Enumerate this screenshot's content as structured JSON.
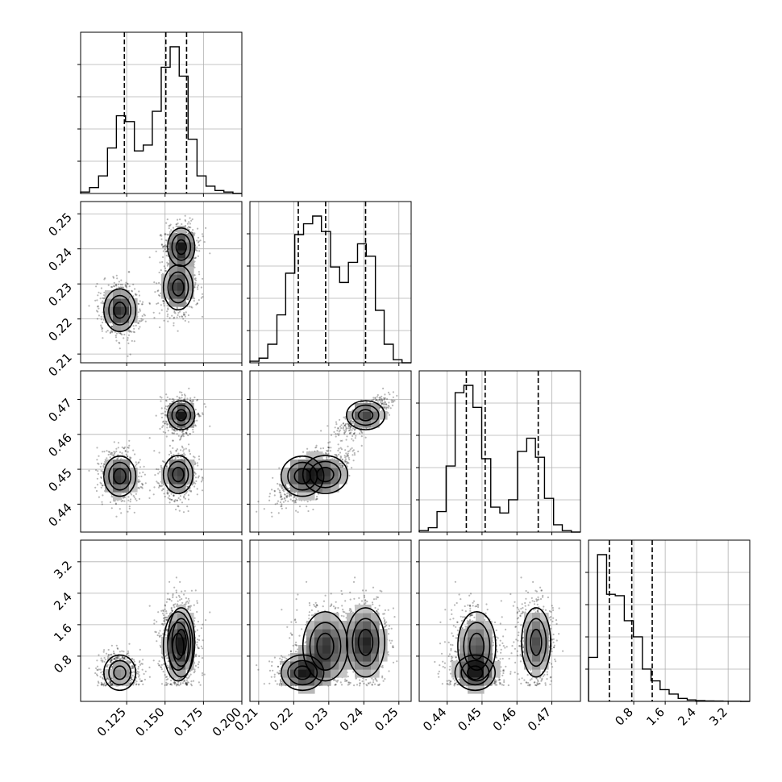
{
  "chart_data": {
    "type": "corner",
    "description_of_layout": "4x4 lower-triangular corner plot; diagonal=1D histograms with 16/50/84% dashed quantile lines; off-diagonal=2D density (scatter + contours)",
    "grid": true,
    "parameters": [
      {
        "id": "p1",
        "range": [
          0.095,
          0.2
        ],
        "ticks": [
          0.125,
          0.15,
          0.175,
          0.2
        ],
        "tick_labels": [
          "0.125",
          "0.150",
          "0.175",
          "0.200"
        ],
        "quantiles": [
          0.1235,
          0.1505,
          0.164
        ],
        "hist_bins": [
          0.095,
          0.1008,
          0.1067,
          0.1125,
          0.1183,
          0.1242,
          0.13,
          0.1358,
          0.1417,
          0.1475,
          0.1533,
          0.1592,
          0.165,
          0.1708,
          0.1767,
          0.1825,
          0.1883,
          0.1942,
          0.2
        ],
        "hist_counts": [
          0.01,
          0.04,
          0.12,
          0.31,
          0.53,
          0.49,
          0.29,
          0.33,
          0.56,
          0.86,
          1.0,
          0.8,
          0.37,
          0.12,
          0.05,
          0.02,
          0.01,
          0.0
        ],
        "modes": [
          {
            "x": 0.1205,
            "sx": 0.0065,
            "w": 0.33
          },
          {
            "x": 0.1605,
            "sx": 0.0055,
            "w": 0.67
          }
        ]
      },
      {
        "id": "p2",
        "range": [
          0.2075,
          0.2535
        ],
        "ticks": [
          0.21,
          0.22,
          0.23,
          0.24,
          0.25
        ],
        "tick_labels": [
          "0.21",
          "0.22",
          "0.23",
          "0.24",
          "0.25"
        ],
        "quantiles": [
          0.2213,
          0.2291,
          0.2405
        ],
        "hist_bins": [
          0.2075,
          0.2101,
          0.2126,
          0.2152,
          0.2177,
          0.2203,
          0.2228,
          0.2254,
          0.2279,
          0.2305,
          0.2331,
          0.2356,
          0.2382,
          0.2407,
          0.2433,
          0.2458,
          0.2484,
          0.2509,
          0.2535
        ],
        "hist_counts": [
          0.01,
          0.03,
          0.12,
          0.31,
          0.58,
          0.83,
          0.9,
          0.95,
          0.85,
          0.62,
          0.52,
          0.65,
          0.77,
          0.69,
          0.34,
          0.12,
          0.02,
          0.0
        ],
        "modes": [
          {
            "y": 0.2225,
            "sy": 0.0035
          },
          {
            "y": 0.2405,
            "sy": 0.0035
          }
        ]
      },
      {
        "id": "p3",
        "range": [
          0.432,
          0.4782
        ],
        "ticks": [
          0.44,
          0.45,
          0.46,
          0.47
        ],
        "tick_labels": [
          "0.44",
          "0.45",
          "0.46",
          "0.47"
        ],
        "quantiles": [
          0.4455,
          0.4509,
          0.4661
        ],
        "hist_bins": [
          0.432,
          0.4346,
          0.4371,
          0.4397,
          0.4423,
          0.4448,
          0.4474,
          0.4499,
          0.4525,
          0.4551,
          0.4576,
          0.4602,
          0.4628,
          0.4653,
          0.4679,
          0.4705,
          0.473,
          0.4756,
          0.4782
        ],
        "hist_counts": [
          0.01,
          0.03,
          0.14,
          0.45,
          0.95,
          1.0,
          0.85,
          0.5,
          0.17,
          0.13,
          0.22,
          0.55,
          0.64,
          0.51,
          0.23,
          0.05,
          0.01,
          0.0
        ],
        "modes": [
          {
            "x": 0.448,
            "sx": 0.0035
          },
          {
            "x": 0.465,
            "sx": 0.0025
          }
        ]
      },
      {
        "id": "p4",
        "range": [
          -0.35,
          3.75
        ],
        "ticks": [
          0.8,
          1.6,
          2.4,
          3.2
        ],
        "tick_labels": [
          "0.8",
          "1.6",
          "2.4",
          "3.2"
        ],
        "quantiles": [
          0.18,
          0.75,
          1.27
        ],
        "hist_bins": [
          -0.35,
          -0.12,
          0.11,
          0.33,
          0.56,
          0.79,
          1.02,
          1.24,
          1.47,
          1.7,
          1.93,
          2.16,
          2.38,
          2.61,
          2.84,
          3.07,
          3.29,
          3.52,
          3.75
        ],
        "hist_counts": [
          0.3,
          1.0,
          0.73,
          0.72,
          0.55,
          0.44,
          0.22,
          0.14,
          0.08,
          0.05,
          0.02,
          0.01,
          0.005,
          0.003,
          0.002,
          0.001,
          0.001,
          0.0
        ],
        "modes": [
          {
            "y": 0.38,
            "sy": 0.28
          },
          {
            "y": 1.15,
            "sy": 0.5
          }
        ]
      }
    ]
  }
}
